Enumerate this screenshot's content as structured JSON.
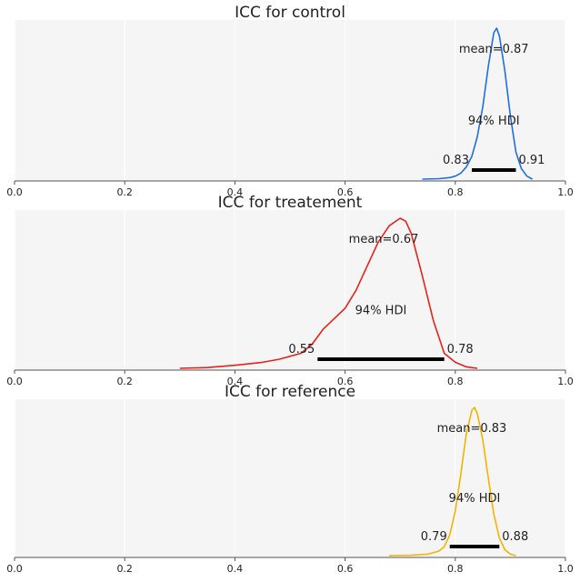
{
  "chart_data": [
    {
      "type": "line",
      "title": "ICC for control",
      "color": "#1f6fe0",
      "mean": 0.87,
      "mean_label": "mean=0.87",
      "hdi": [
        0.83,
        0.91
      ],
      "hdi_lower_label": "0.83",
      "hdi_upper_label": "0.91",
      "hdi_label": "94% HDI",
      "xlim": [
        0.0,
        1.0
      ],
      "xticks": [
        "0.0",
        "0.2",
        "0.4",
        "0.6",
        "0.8",
        "1.0"
      ],
      "curve": {
        "x": [
          0.74,
          0.77,
          0.79,
          0.8,
          0.81,
          0.82,
          0.83,
          0.84,
          0.85,
          0.86,
          0.87,
          0.875,
          0.88,
          0.89,
          0.9,
          0.91,
          0.92,
          0.93,
          0.94
        ],
        "density": [
          0.0,
          0.003,
          0.01,
          0.02,
          0.04,
          0.08,
          0.15,
          0.28,
          0.48,
          0.75,
          0.97,
          1.0,
          0.95,
          0.72,
          0.42,
          0.18,
          0.07,
          0.02,
          0.0
        ]
      }
    },
    {
      "type": "line",
      "title": "ICC for treatement",
      "color": "#e4231c",
      "mean": 0.67,
      "mean_label": "mean=0.67",
      "hdi": [
        0.55,
        0.78
      ],
      "hdi_lower_label": "0.55",
      "hdi_upper_label": "0.78",
      "hdi_label": "94% HDI",
      "xlim": [
        0.0,
        1.0
      ],
      "xticks": [
        "0.0",
        "0.2",
        "0.4",
        "0.6",
        "0.8",
        "1.0"
      ],
      "curve": {
        "x": [
          0.3,
          0.35,
          0.4,
          0.45,
          0.48,
          0.5,
          0.52,
          0.54,
          0.56,
          0.58,
          0.6,
          0.62,
          0.64,
          0.66,
          0.68,
          0.7,
          0.71,
          0.72,
          0.74,
          0.76,
          0.78,
          0.8,
          0.82,
          0.84
        ],
        "density": [
          0.0,
          0.005,
          0.02,
          0.04,
          0.06,
          0.08,
          0.1,
          0.16,
          0.26,
          0.33,
          0.4,
          0.52,
          0.68,
          0.84,
          0.95,
          1.0,
          0.98,
          0.9,
          0.62,
          0.32,
          0.1,
          0.04,
          0.01,
          0.0
        ]
      }
    },
    {
      "type": "line",
      "title": "ICC for reference",
      "color": "#f2b400",
      "mean": 0.83,
      "mean_label": "mean=0.83",
      "hdi": [
        0.79,
        0.88
      ],
      "hdi_lower_label": "0.79",
      "hdi_upper_label": "0.88",
      "hdi_label": "94% HDI",
      "xlim": [
        0.0,
        1.0
      ],
      "xticks": [
        "0.0",
        "0.2",
        "0.4",
        "0.6",
        "0.8",
        "1.0"
      ],
      "curve": {
        "x": [
          0.68,
          0.72,
          0.75,
          0.77,
          0.78,
          0.79,
          0.8,
          0.81,
          0.82,
          0.83,
          0.835,
          0.84,
          0.85,
          0.86,
          0.87,
          0.88,
          0.89,
          0.9,
          0.91
        ],
        "density": [
          0.0,
          0.003,
          0.01,
          0.03,
          0.06,
          0.14,
          0.3,
          0.55,
          0.82,
          0.98,
          1.0,
          0.96,
          0.78,
          0.52,
          0.28,
          0.12,
          0.04,
          0.01,
          0.0
        ]
      }
    }
  ]
}
